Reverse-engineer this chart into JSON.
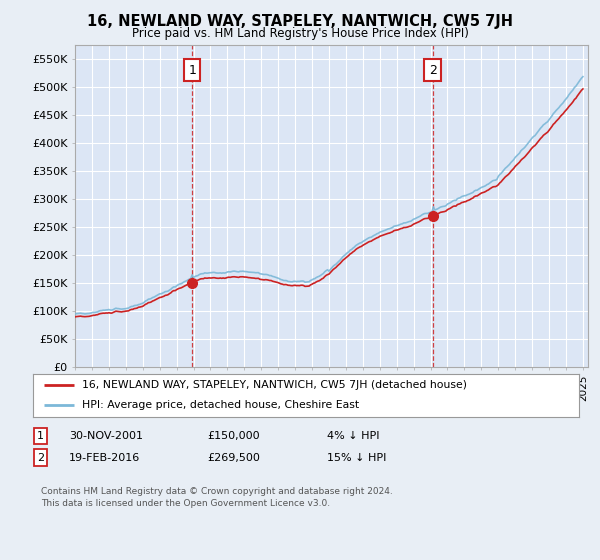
{
  "title": "16, NEWLAND WAY, STAPELEY, NANTWICH, CW5 7JH",
  "subtitle": "Price paid vs. HM Land Registry's House Price Index (HPI)",
  "bg_color": "#e8eef5",
  "plot_bg_color": "#dce6f5",
  "grid_color": "#ffffff",
  "ylim": [
    0,
    575000
  ],
  "yticks": [
    0,
    50000,
    100000,
    150000,
    200000,
    250000,
    300000,
    350000,
    400000,
    450000,
    500000,
    550000
  ],
  "x_start_year": 1995,
  "x_end_year": 2025,
  "transaction1": {
    "date_num": 2001.917,
    "price": 150000,
    "label": "1"
  },
  "transaction2": {
    "date_num": 2016.13,
    "price": 269500,
    "label": "2"
  },
  "legend_line1": "16, NEWLAND WAY, STAPELEY, NANTWICH, CW5 7JH (detached house)",
  "legend_line2": "HPI: Average price, detached house, Cheshire East",
  "footer": "Contains HM Land Registry data © Crown copyright and database right 2024.\nThis data is licensed under the Open Government Licence v3.0.",
  "hpi_color": "#7cb8d8",
  "price_color": "#cc2222",
  "vline_color": "#cc2222",
  "marker_color": "#cc2222",
  "box_edge_color": "#cc2222"
}
